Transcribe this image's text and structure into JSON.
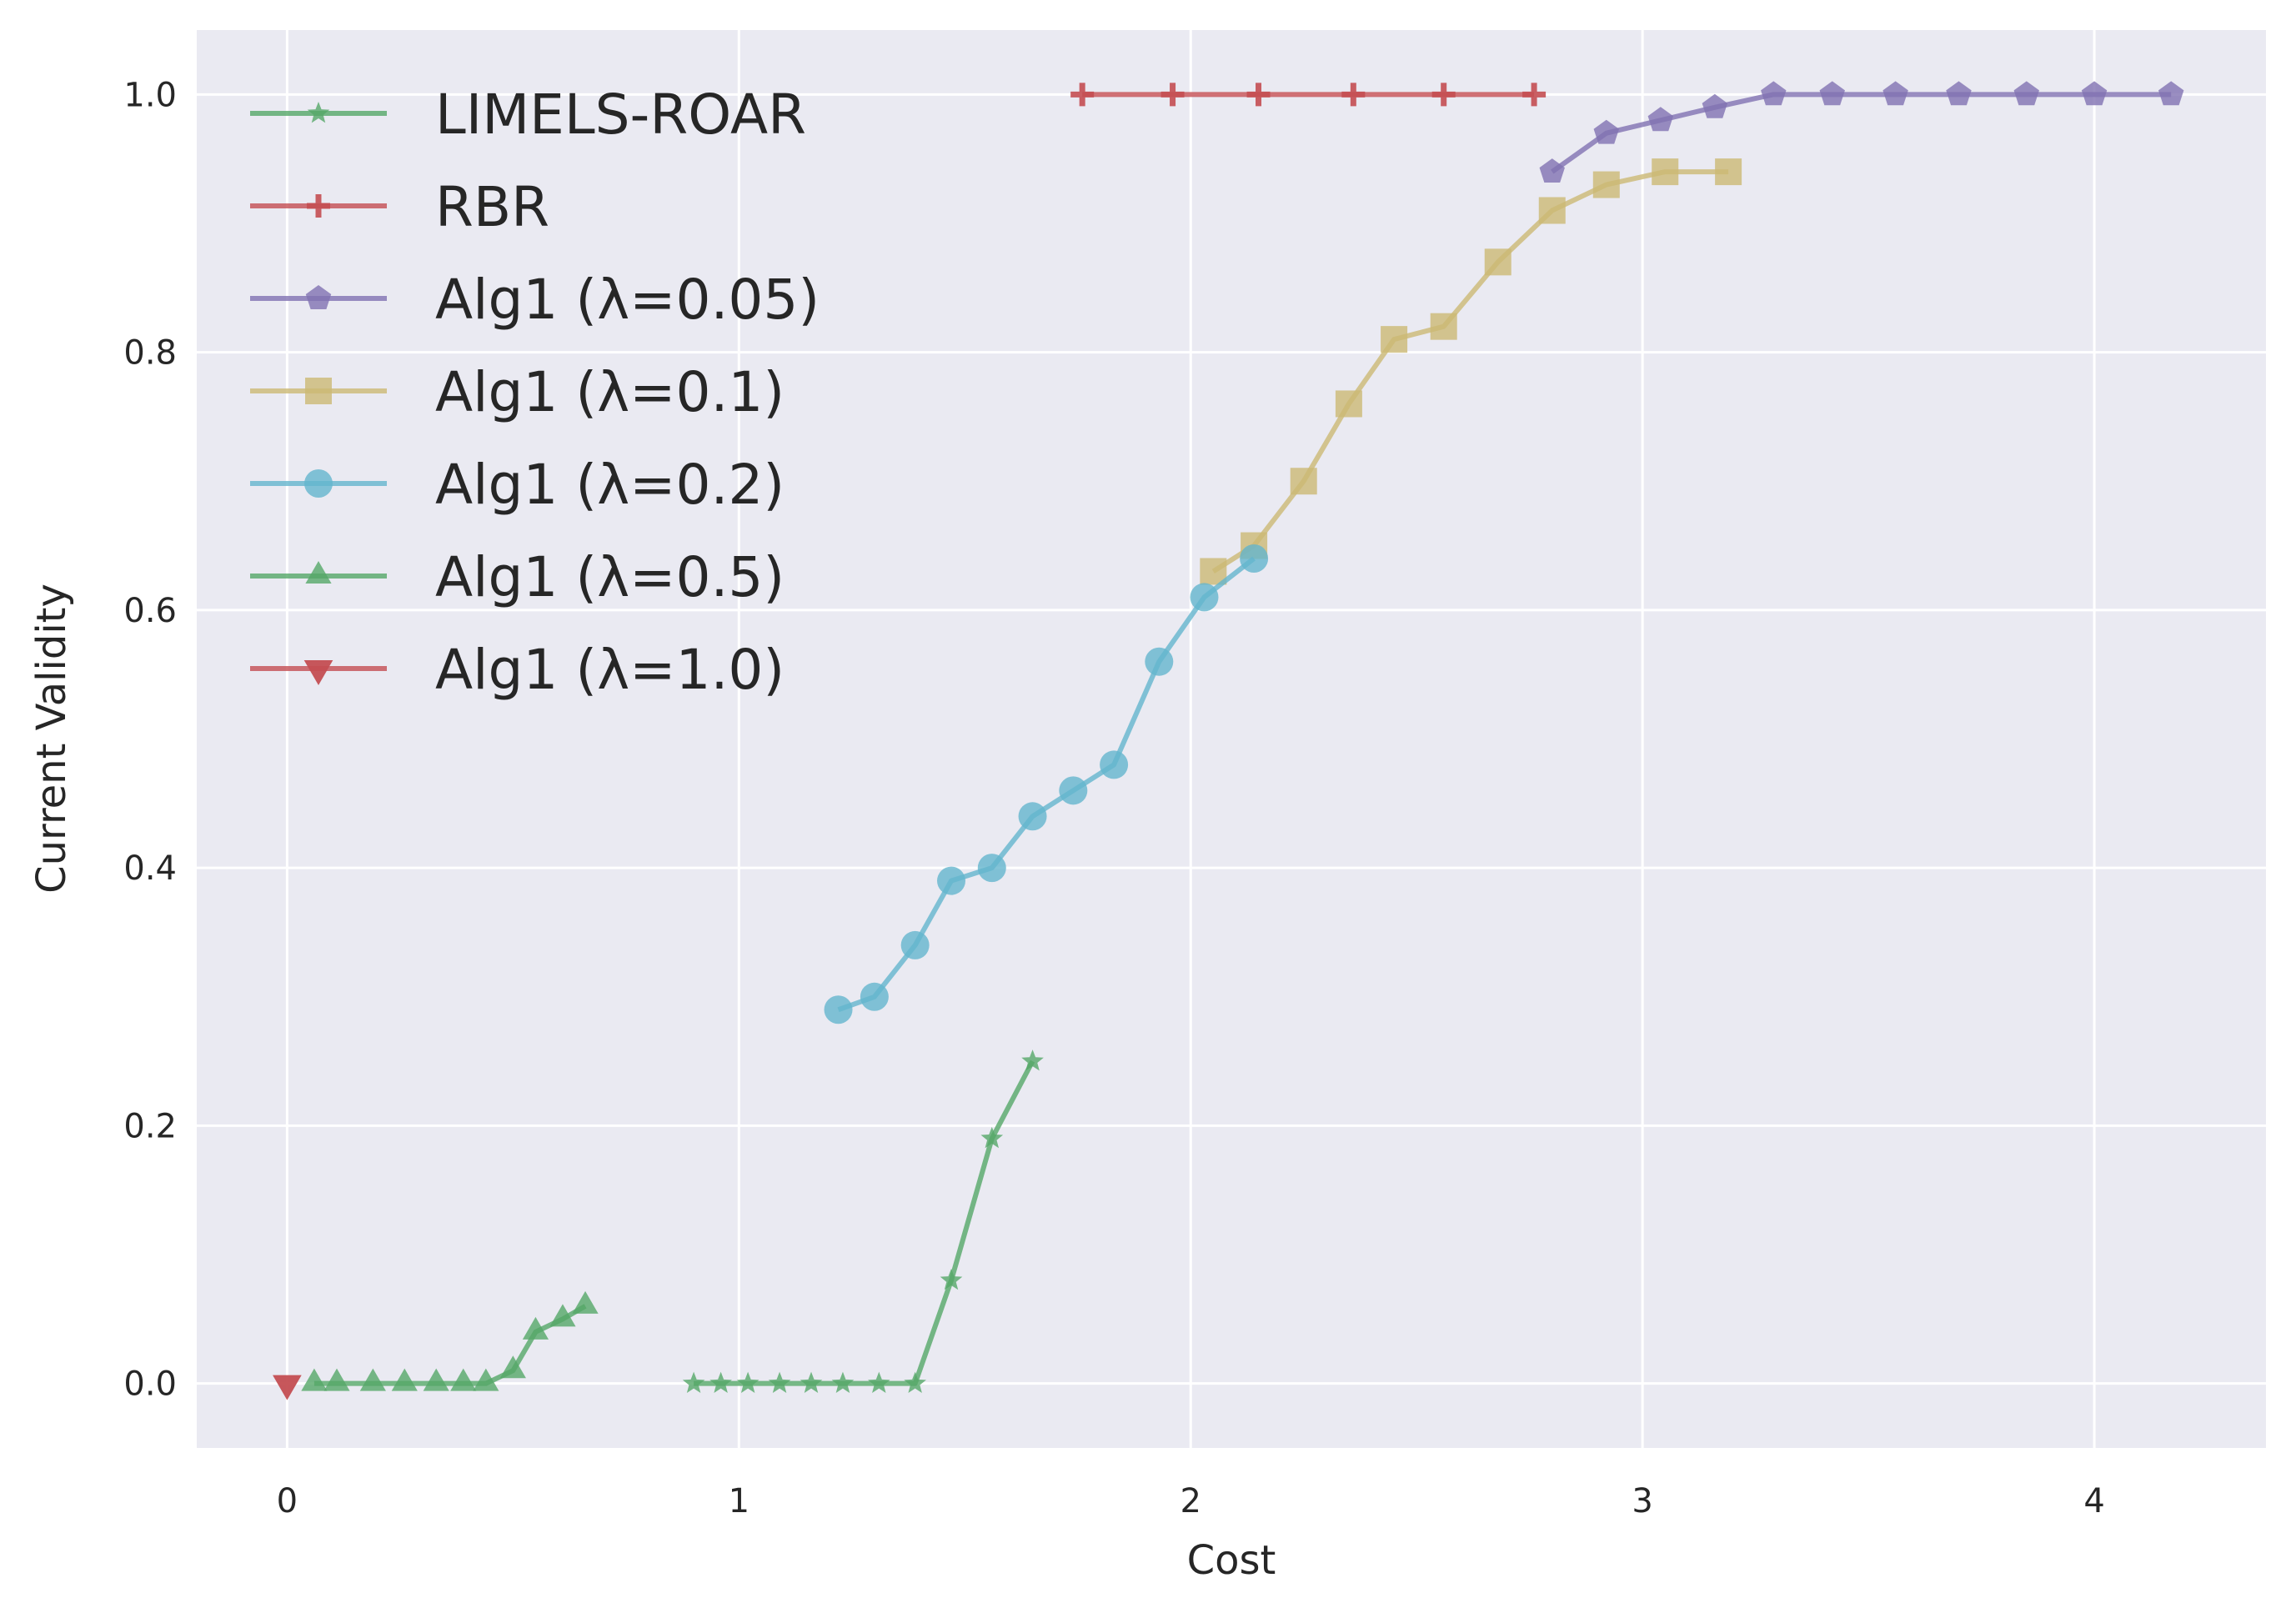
{
  "chart_data": {
    "type": "line",
    "title": "",
    "xlabel": "Cost",
    "ylabel": "Current Validity",
    "xlim": [
      -0.2,
      4.38
    ],
    "ylim": [
      -0.05,
      1.05
    ],
    "xticks": [
      0,
      1,
      2,
      3,
      4
    ],
    "yticks": [
      0.0,
      0.2,
      0.4,
      0.6,
      0.8,
      1.0
    ],
    "xtick_labels": [
      "0",
      "1",
      "2",
      "3",
      "4"
    ],
    "ytick_labels": [
      "0.0",
      "0.2",
      "0.4",
      "0.6",
      "0.8",
      "1.0"
    ],
    "grid": true,
    "legend_position": "upper-left",
    "series": [
      {
        "name": "LIMELS-ROAR",
        "color": "#55a868",
        "marker": "star",
        "x": [
          0.9,
          0.96,
          1.02,
          1.09,
          1.16,
          1.23,
          1.31,
          1.39,
          1.47,
          1.56,
          1.65
        ],
        "y": [
          0.0,
          0.0,
          0.0,
          0.0,
          0.0,
          0.0,
          0.0,
          0.0,
          0.08,
          0.19,
          0.25
        ]
      },
      {
        "name": "RBR",
        "color": "#c44e52",
        "marker": "plus",
        "x": [
          1.76,
          1.96,
          2.15,
          2.36,
          2.56,
          2.76
        ],
        "y": [
          1.0,
          1.0,
          1.0,
          1.0,
          1.0,
          1.0
        ]
      },
      {
        "name": "Alg1 (λ=0.05)",
        "color": "#8172b2",
        "marker": "pentagon",
        "x": [
          2.8,
          2.92,
          3.04,
          3.16,
          3.29,
          3.42,
          3.56,
          3.7,
          3.85,
          4.0,
          4.17
        ],
        "y": [
          0.94,
          0.97,
          0.98,
          0.99,
          1.0,
          1.0,
          1.0,
          1.0,
          1.0,
          1.0,
          1.0
        ]
      },
      {
        "name": "Alg1 (λ=0.1)",
        "color": "#ccb974",
        "marker": "square",
        "x": [
          2.05,
          2.14,
          2.25,
          2.35,
          2.45,
          2.56,
          2.68,
          2.8,
          2.92,
          3.05,
          3.19
        ],
        "y": [
          0.63,
          0.65,
          0.7,
          0.76,
          0.81,
          0.82,
          0.87,
          0.91,
          0.93,
          0.94,
          0.94
        ]
      },
      {
        "name": "Alg1 (λ=0.2)",
        "color": "#64b5cd",
        "marker": "circle",
        "x": [
          1.22,
          1.3,
          1.39,
          1.47,
          1.56,
          1.65,
          1.74,
          1.83,
          1.93,
          2.03,
          2.14
        ],
        "y": [
          0.29,
          0.3,
          0.34,
          0.39,
          0.4,
          0.44,
          0.46,
          0.48,
          0.56,
          0.61,
          0.64
        ]
      },
      {
        "name": "Alg1 (λ=0.5)",
        "color": "#55a868",
        "marker": "triangle-up",
        "x": [
          0.06,
          0.11,
          0.19,
          0.26,
          0.33,
          0.39,
          0.44,
          0.5,
          0.55,
          0.61,
          0.66
        ],
        "y": [
          0.0,
          0.0,
          0.0,
          0.0,
          0.0,
          0.0,
          0.0,
          0.01,
          0.04,
          0.05,
          0.06
        ]
      },
      {
        "name": "Alg1 (λ=1.0)",
        "color": "#c44e52",
        "marker": "triangle-down",
        "x": [
          0.0
        ],
        "y": [
          0.0
        ]
      }
    ]
  }
}
